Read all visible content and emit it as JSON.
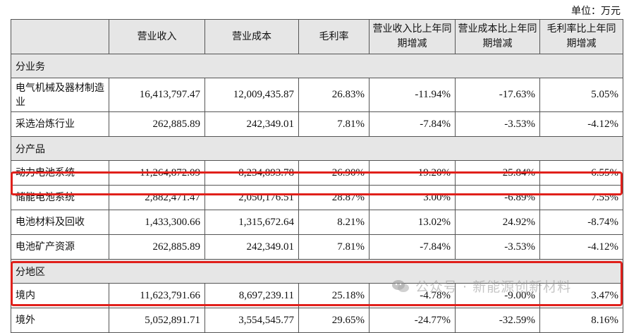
{
  "unit": "单位：万元",
  "headers": [
    "",
    "营业收入",
    "营业成本",
    "毛利率",
    "营业收入比上年同期增减",
    "营业成本比上年同期增减",
    "毛利率比上年同期增减"
  ],
  "sections": [
    {
      "title": "分业务",
      "rows": [
        [
          "电气机械及器材制造业",
          "16,413,797.47",
          "12,009,435.87",
          "26.83%",
          "-11.94%",
          "-17.63%",
          "5.05%"
        ],
        [
          "采选冶炼行业",
          "262,885.89",
          "242,349.01",
          "7.81%",
          "-7.84%",
          "-3.53%",
          "-4.12%"
        ]
      ]
    },
    {
      "title": "分产品",
      "rows": [
        [
          "动力电池系统",
          "11,264,872.09",
          "8,234,893.78",
          "26.90%",
          "-19.20%",
          "-25.84%",
          "6.55%"
        ],
        [
          "储能电池系统",
          "2,882,471.47",
          "2,050,176.51",
          "28.87%",
          "3.00%",
          "-6.89%",
          "7.55%"
        ],
        [
          "电池材料及回收",
          "1,433,300.66",
          "1,315,672.64",
          "8.21%",
          "13.02%",
          "24.92%",
          "-8.74%"
        ],
        [
          "电池矿产资源",
          "262,885.89",
          "242,349.01",
          "7.81%",
          "-7.84%",
          "-3.53%",
          "-4.12%"
        ]
      ]
    },
    {
      "title": "分地区",
      "rows": [
        [
          "境内",
          "11,623,791.66",
          "8,697,239.11",
          "25.18%",
          "-4.78%",
          "-9.00%",
          "3.47%"
        ],
        [
          "境外",
          "5,052,891.71",
          "3,554,545.77",
          "29.65%",
          "-24.77%",
          "-32.59%",
          "8.16%"
        ]
      ]
    }
  ],
  "watermark": "公众号 · 新能源创新材料",
  "highlight_color": "#e0201b"
}
